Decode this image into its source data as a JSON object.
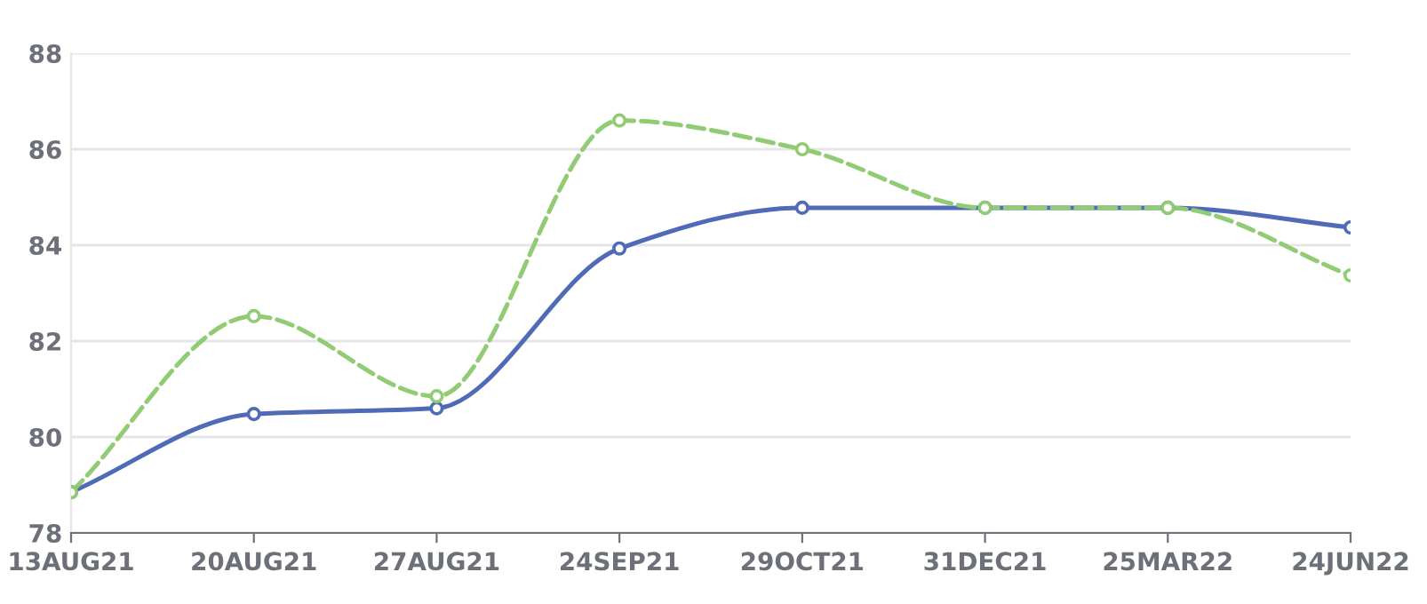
{
  "chart_data": {
    "type": "line",
    "categories": [
      "13AUG21",
      "20AUG21",
      "27AUG21",
      "24SEP21",
      "29OCT21",
      "31DEC21",
      "25MAR22",
      "24JUN22"
    ],
    "series": [
      {
        "color": "#4f6bb8",
        "line_style": "solid",
        "values": [
          78.85,
          80.48,
          80.6,
          83.93,
          84.78,
          84.78,
          84.78,
          84.37
        ]
      },
      {
        "color": "#91cc75",
        "line_style": "dashed",
        "values": [
          78.85,
          82.52,
          80.85,
          86.6,
          86.0,
          84.78,
          84.78,
          83.37
        ]
      }
    ],
    "ylim": [
      78,
      88
    ],
    "yticks": [
      78,
      80,
      82,
      84,
      86,
      88
    ],
    "grid": "y",
    "marker": "circle",
    "legend": false
  }
}
